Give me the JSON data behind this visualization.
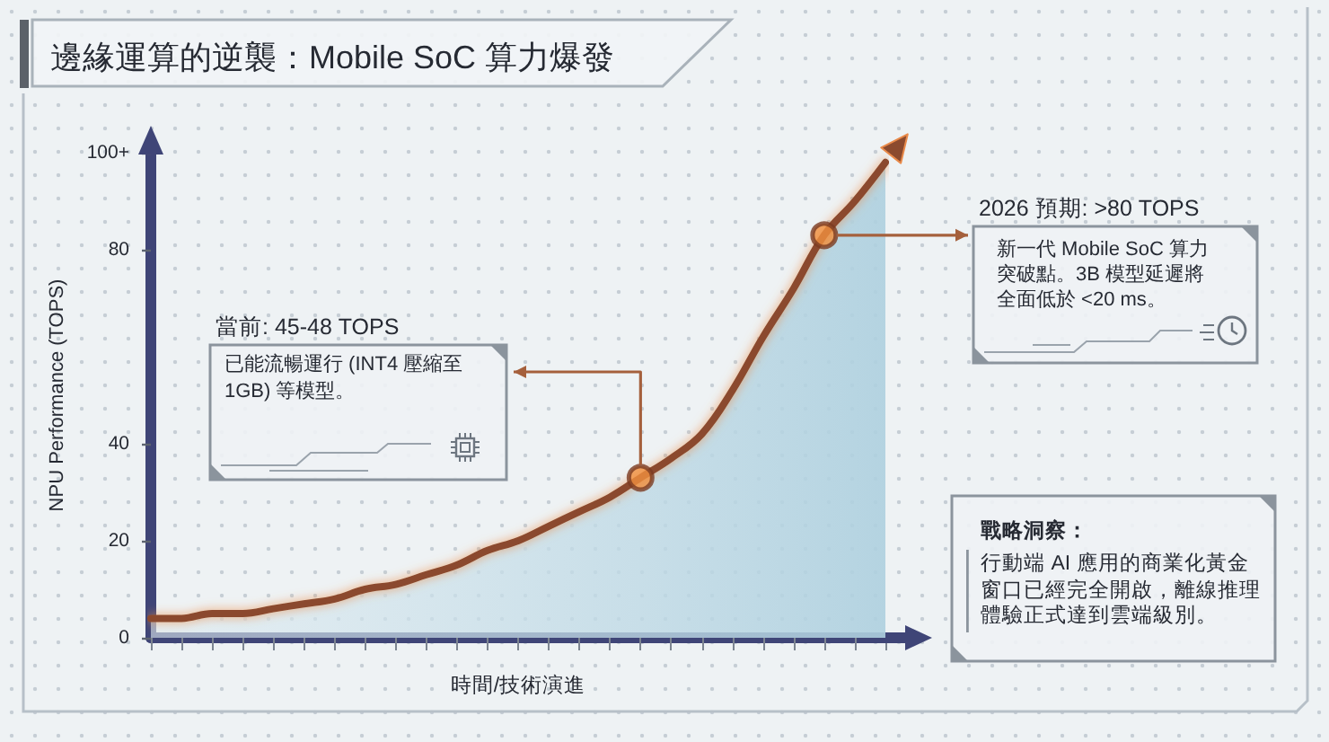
{
  "chart_data": {
    "type": "area",
    "title": "邊緣運算的逆襲：Mobile SoC 算力爆發",
    "xlabel": "時間/技術演進",
    "ylabel": "NPU Performance (TOPS)",
    "categories": [
      null,
      null,
      null,
      null,
      null,
      null,
      null,
      null,
      null,
      null,
      null,
      null,
      null,
      null,
      null,
      null,
      null,
      null,
      null,
      null,
      null,
      null,
      null,
      null,
      null
    ],
    "series": [
      {
        "color": "#8b4a2e",
        "values": [
          4,
          4,
          5,
          5,
          6,
          7,
          8,
          10,
          11,
          13,
          15,
          18,
          20,
          23,
          26,
          29,
          33,
          37,
          42,
          51,
          62,
          72,
          83,
          90,
          98
        ]
      },
      {
        "type": "scatter",
        "color": "#f0903f",
        "values": [
          null,
          null,
          null,
          null,
          null,
          null,
          null,
          null,
          null,
          null,
          null,
          null,
          null,
          null,
          null,
          null,
          33,
          null,
          null,
          null,
          null,
          null,
          83,
          null,
          null
        ]
      }
    ],
    "ylim": [
      0,
      100
    ],
    "yticks": [
      0,
      20,
      40,
      80,
      {
        "value": 100,
        "label": "100+"
      }
    ],
    "tick_labels": "y",
    "annotations": [
      "當前: 45-48 TOPS",
      "已能流暢運行 (INT4 壓縮至 1GB) 等模型。",
      "2026 預期: >80 TOPS",
      "新一代 Mobile SoC 算力突破點。3B 模型延遲將全面低於 <20 ms。",
      "戰略洞察：",
      "行動端 AI 應用的商業化黃金窗口已經完全開啟，離線推理體驗正式達到雲端級別。"
    ]
  }
}
